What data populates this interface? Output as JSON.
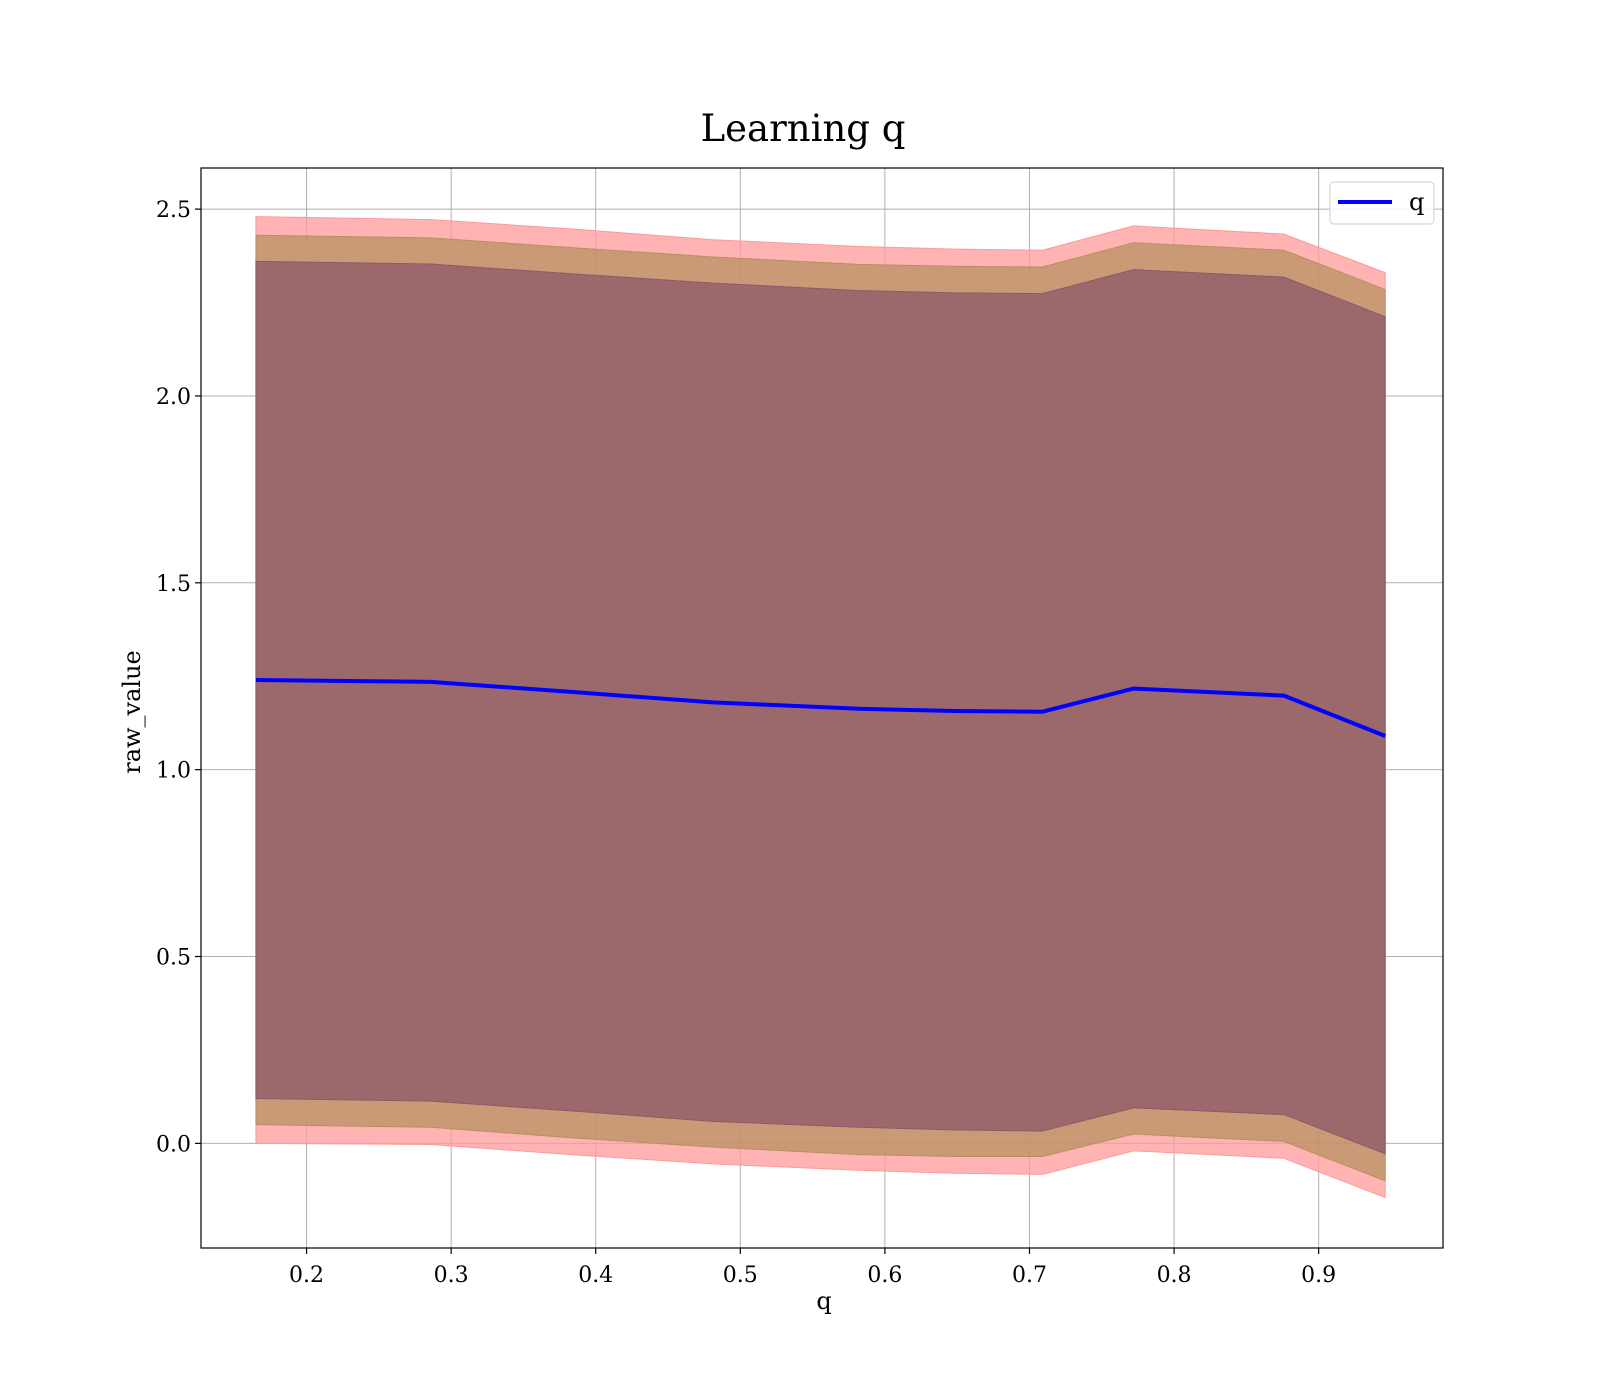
{
  "chart_data": {
    "type": "line",
    "title": "Learning q",
    "xlabel": "q",
    "ylabel": "raw_value",
    "xlim": [
      0.127,
      0.986
    ],
    "ylim": [
      -0.28,
      2.61
    ],
    "xticks": [
      0.2,
      0.3,
      0.4,
      0.5,
      0.6,
      0.7,
      0.8,
      0.9
    ],
    "xtick_labels": [
      "0.2",
      "0.3",
      "0.4",
      "0.5",
      "0.6",
      "0.7",
      "0.8",
      "0.9"
    ],
    "yticks": [
      0.0,
      0.5,
      1.0,
      1.5,
      2.0,
      2.5
    ],
    "ytick_labels": [
      "0.0",
      "0.5",
      "1.0",
      "1.5",
      "2.0",
      "2.5"
    ],
    "grid": true,
    "legend": {
      "position": "top-right",
      "entries": [
        "q"
      ]
    },
    "x": [
      0.165,
      0.286,
      0.383,
      0.481,
      0.582,
      0.648,
      0.709,
      0.772,
      0.876,
      0.946
    ],
    "series": [
      {
        "name": "q",
        "color": "#0000ff",
        "values": [
          1.24,
          1.235,
          1.208,
          1.18,
          1.163,
          1.157,
          1.155,
          1.217,
          1.198,
          1.09
        ]
      }
    ],
    "bands": [
      {
        "fill": "#ff9999",
        "lower": [
          0.0,
          -0.003,
          -0.03,
          -0.055,
          -0.072,
          -0.08,
          -0.083,
          -0.02,
          -0.04,
          -0.145
        ],
        "upper": [
          2.48,
          2.472,
          2.447,
          2.418,
          2.4,
          2.393,
          2.39,
          2.455,
          2.433,
          2.33
        ]
      },
      {
        "fill": "#b89060",
        "lower": [
          0.05,
          0.043,
          0.015,
          -0.01,
          -0.03,
          -0.035,
          -0.035,
          0.025,
          0.005,
          -0.1
        ],
        "upper": [
          2.43,
          2.423,
          2.397,
          2.372,
          2.352,
          2.347,
          2.345,
          2.41,
          2.39,
          2.285
        ]
      },
      {
        "fill": "#8b5a6a",
        "lower": [
          0.12,
          0.113,
          0.087,
          0.059,
          0.043,
          0.036,
          0.033,
          0.095,
          0.077,
          -0.028
        ],
        "upper": [
          2.36,
          2.353,
          2.327,
          2.302,
          2.282,
          2.276,
          2.274,
          2.338,
          2.318,
          2.212
        ]
      }
    ]
  }
}
